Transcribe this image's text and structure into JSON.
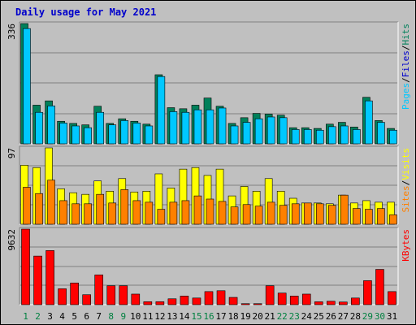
{
  "title": "Daily usage for May 2021",
  "chart_data": [
    {
      "type": "bar",
      "panel": "hits-files-pages",
      "categories": [
        "1",
        "2",
        "3",
        "4",
        "5",
        "6",
        "7",
        "8",
        "9",
        "10",
        "11",
        "12",
        "13",
        "14",
        "15",
        "16",
        "17",
        "18",
        "19",
        "20",
        "21",
        "22",
        "23",
        "24",
        "25",
        "26",
        "27",
        "28",
        "29",
        "30",
        "31"
      ],
      "max_label": "336",
      "ylim": [
        0,
        336
      ],
      "side_label": [
        "Pages",
        "/",
        "Files",
        "/",
        "Hits"
      ],
      "grid": true,
      "series": [
        {
          "name": "Hits",
          "color": "#00805a",
          "values": [
            336,
            108,
            120,
            63,
            57,
            53,
            105,
            57,
            70,
            63,
            55,
            193,
            101,
            98,
            108,
            128,
            105,
            57,
            73,
            85,
            83,
            80,
            45,
            45,
            43,
            55,
            60,
            47,
            130,
            65,
            43
          ]
        },
        {
          "name": "Files",
          "color": "#00c8ff",
          "values": [
            322,
            88,
            106,
            58,
            50,
            45,
            88,
            53,
            65,
            58,
            50,
            188,
            90,
            88,
            95,
            95,
            100,
            50,
            60,
            70,
            75,
            73,
            40,
            40,
            38,
            48,
            50,
            40,
            120,
            60,
            38
          ]
        }
      ]
    },
    {
      "type": "bar",
      "panel": "visits-sites",
      "categories": [
        "1",
        "2",
        "3",
        "4",
        "5",
        "6",
        "7",
        "8",
        "9",
        "10",
        "11",
        "12",
        "13",
        "14",
        "15",
        "16",
        "17",
        "18",
        "19",
        "20",
        "21",
        "22",
        "23",
        "24",
        "25",
        "26",
        "27",
        "28",
        "29",
        "30",
        "31"
      ],
      "max_label": "97",
      "ylim": [
        0,
        97
      ],
      "side_label": [
        "Sites",
        "/",
        "Visits"
      ],
      "grid": true,
      "series": [
        {
          "name": "Visits",
          "color": "#ffff00",
          "values": [
            75,
            72,
            97,
            45,
            40,
            38,
            55,
            42,
            58,
            41,
            42,
            64,
            46,
            70,
            72,
            62,
            70,
            36,
            48,
            42,
            58,
            42,
            33,
            27,
            27,
            26,
            37,
            27,
            30,
            28,
            28
          ]
        },
        {
          "name": "Sites",
          "color": "#ff8000",
          "values": [
            47,
            39,
            56,
            30,
            26,
            26,
            38,
            27,
            44,
            30,
            28,
            19,
            28,
            30,
            36,
            32,
            29,
            22,
            25,
            23,
            28,
            24,
            26,
            27,
            26,
            24,
            37,
            20,
            19,
            20,
            12
          ]
        }
      ]
    },
    {
      "type": "bar",
      "panel": "kbytes",
      "categories": [
        "1",
        "2",
        "3",
        "4",
        "5",
        "6",
        "7",
        "8",
        "9",
        "10",
        "11",
        "12",
        "13",
        "14",
        "15",
        "16",
        "17",
        "18",
        "19",
        "20",
        "21",
        "22",
        "23",
        "24",
        "25",
        "26",
        "27",
        "28",
        "29",
        "30",
        "31"
      ],
      "max_label": "9632",
      "ylim": [
        0,
        9632
      ],
      "side_label": [
        "KBytes"
      ],
      "grid": true,
      "series": [
        {
          "name": "KBytes",
          "color": "#ff0000",
          "values": [
            9632,
            6200,
            6900,
            2030,
            2770,
            1270,
            3800,
            2410,
            2410,
            1350,
            380,
            380,
            750,
            1100,
            850,
            1670,
            1780,
            930,
            130,
            130,
            2410,
            1480,
            1100,
            1350,
            370,
            440,
            340,
            850,
            3060,
            4500,
            1670
          ]
        }
      ]
    }
  ],
  "day_colors": {
    "weekday": "#000000",
    "weekend": "#008040"
  },
  "weekend_days": [
    "1",
    "2",
    "8",
    "9",
    "15",
    "16",
    "22",
    "23",
    "29",
    "30"
  ],
  "label_colors": {
    "Pages": "#00c8ff",
    "Files": "#0000cc",
    "Hits": "#00805a",
    "Sites": "#ff8000",
    "Visits": "#ffff00",
    "KBytes": "#ff0000",
    "/": "#000000"
  }
}
